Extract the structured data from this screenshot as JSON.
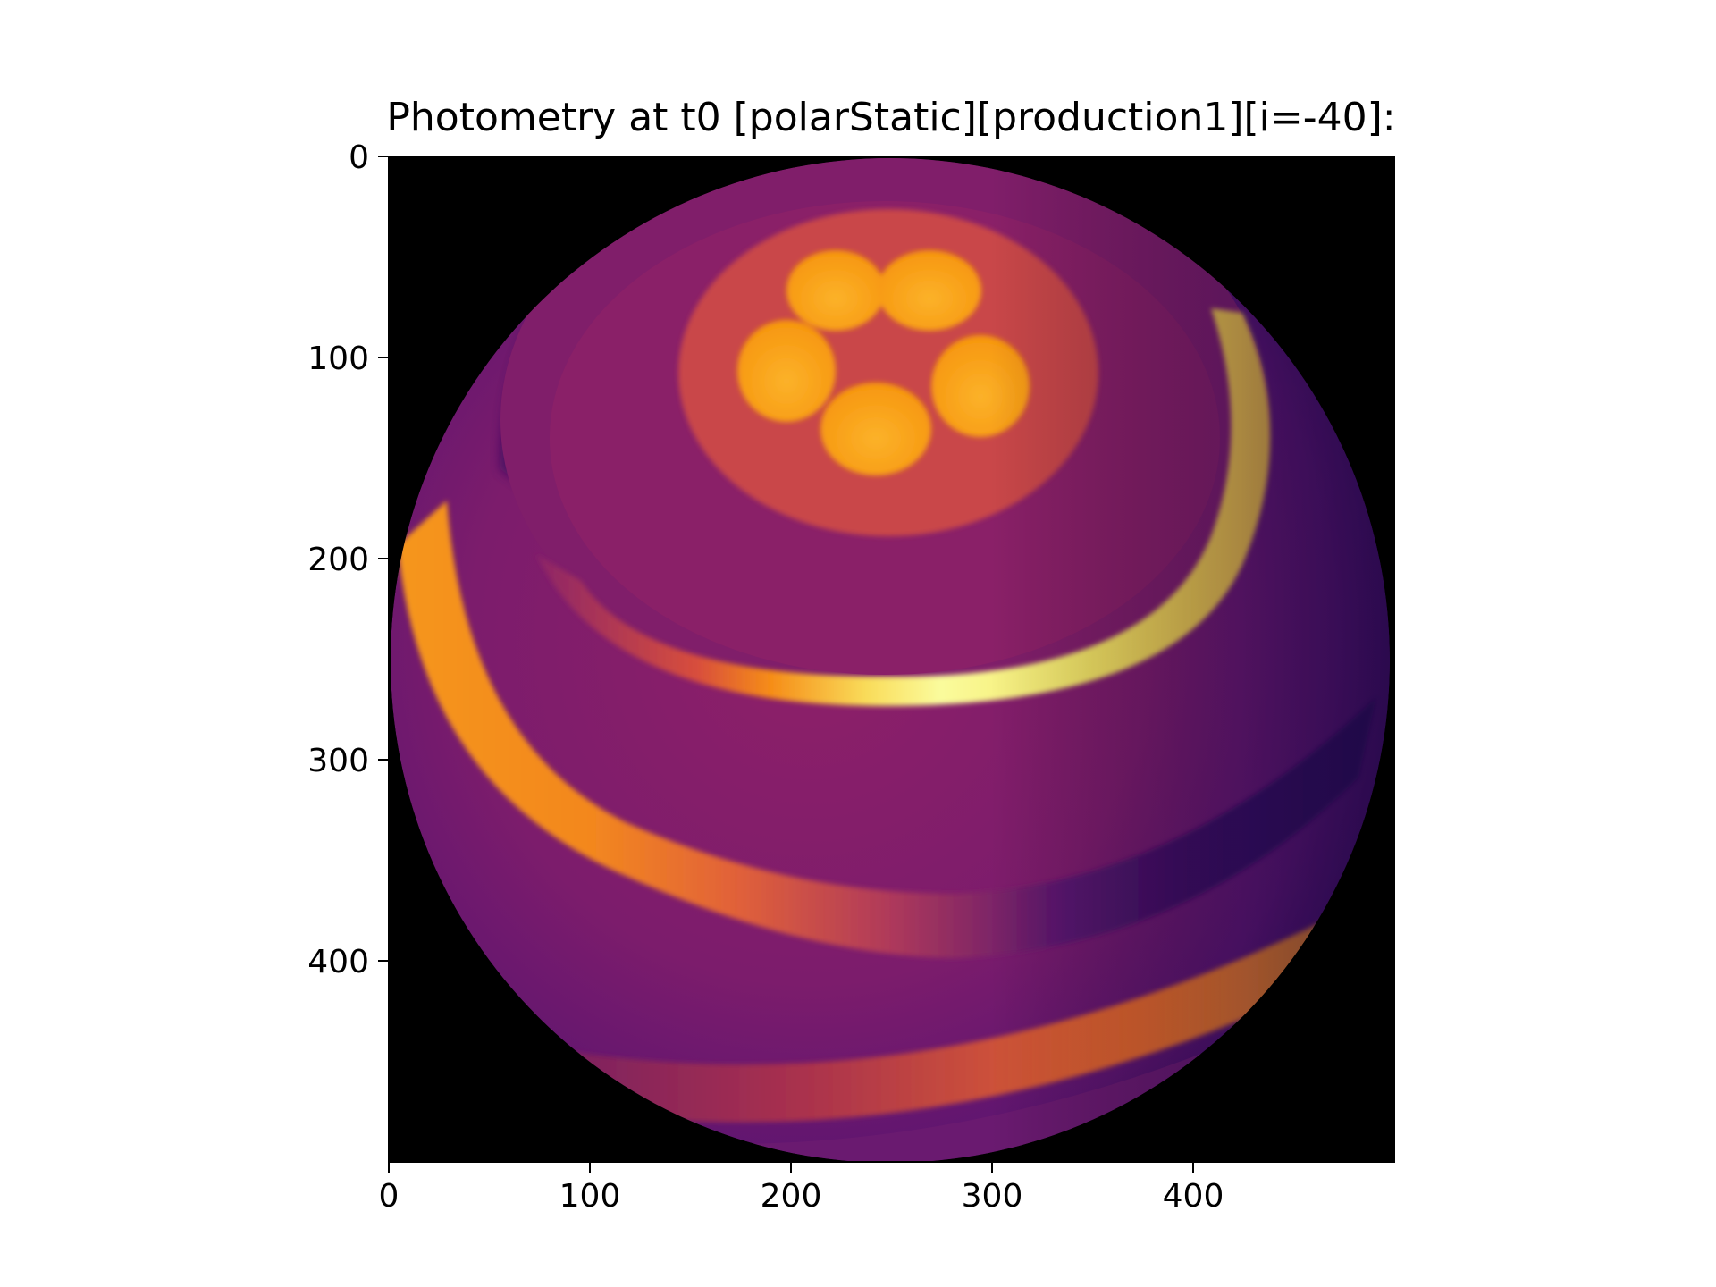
{
  "chart_data": {
    "type": "heatmap",
    "title": "Photometry at t0 [polarStatic][production1][i=-40]:",
    "xlabel": "",
    "ylabel": "",
    "xlim": [
      0,
      500
    ],
    "ylim": [
      500,
      0
    ],
    "y_inverted": true,
    "grid": false,
    "colormap": "inferno",
    "image_size": [
      500,
      500
    ],
    "x_ticks": [
      0,
      100,
      200,
      300,
      400
    ],
    "y_ticks": [
      0,
      100,
      200,
      300,
      400
    ],
    "x_tick_labels": [
      "0",
      "100",
      "200",
      "300",
      "400"
    ],
    "y_tick_labels": [
      "0",
      "100",
      "200",
      "300",
      "400"
    ],
    "description_colors": {
      "background": "#000000",
      "body_base": "#7e1e6e",
      "polar_cap": "#c94a4a",
      "spots": "#f9a017",
      "bright_band": "#f8f48a",
      "dark_limb": "#2a0a56"
    }
  }
}
